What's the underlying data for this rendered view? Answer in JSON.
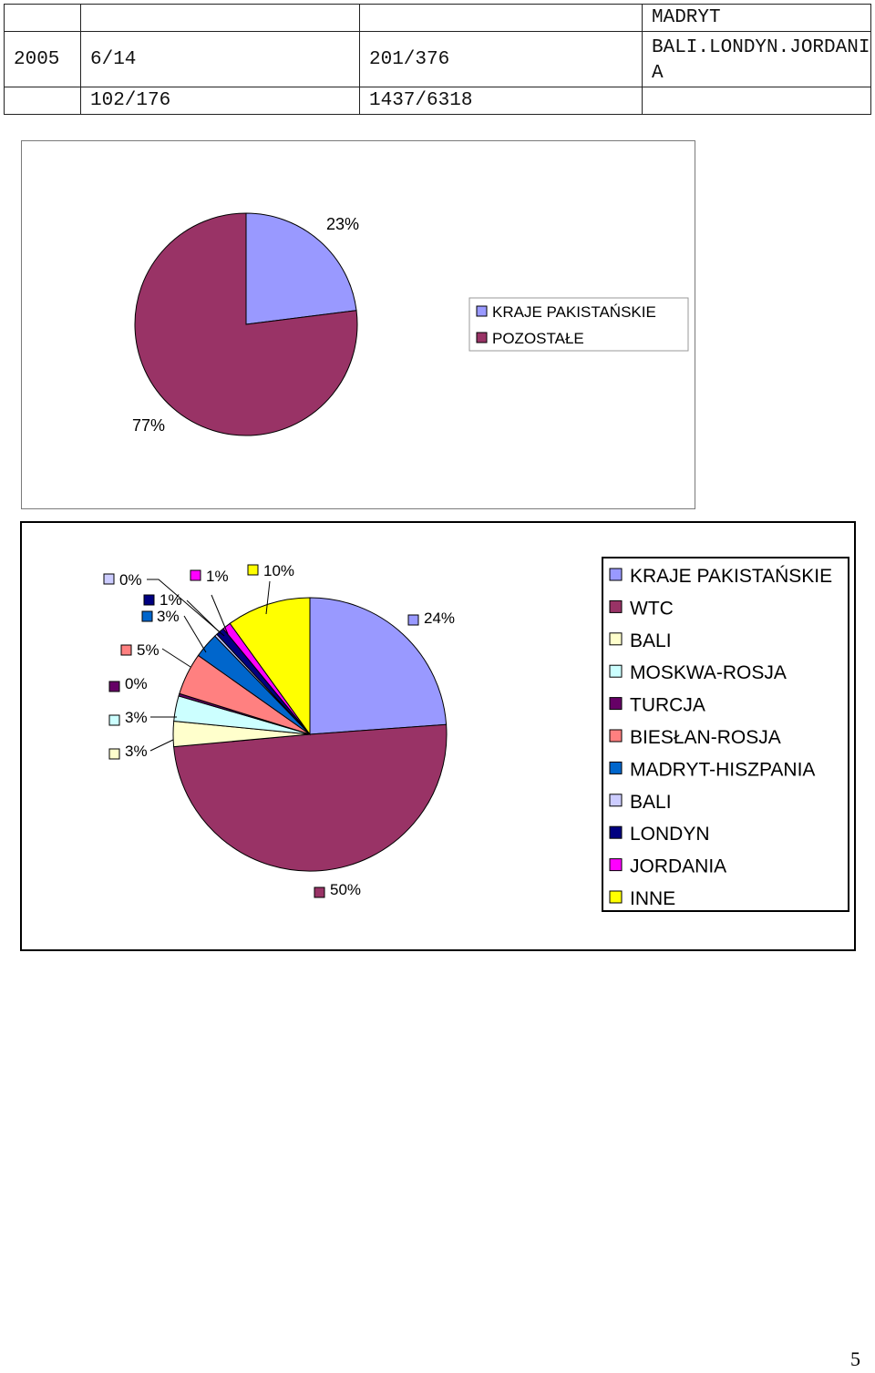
{
  "table": {
    "rows": [
      [
        "",
        "",
        "",
        "MADRYT"
      ],
      [
        "2005",
        "6/14",
        "201/376",
        "BALI.LONDYN.JORDANIA"
      ],
      [
        "",
        "102/176",
        "1437/6318",
        ""
      ]
    ]
  },
  "chart_data": [
    {
      "type": "pie",
      "categories": [
        "KRAJE PAKISTAŃSKIE",
        "POZOSTAŁE"
      ],
      "values": [
        23,
        77
      ],
      "data_labels": [
        "23%",
        "77%"
      ],
      "colors": [
        "#9999ff",
        "#993366"
      ],
      "legend": "right",
      "title": ""
    },
    {
      "type": "pie",
      "categories": [
        "KRAJE PAKISTAŃSKIE",
        "WTC",
        "BALI",
        "MOSKWA-ROSJA",
        "TURCJA",
        "BIESŁAN-ROSJA",
        "MADRYT-HISZPANIA",
        "BALI",
        "LONDYN",
        "JORDANIA",
        "INNE"
      ],
      "values": [
        24,
        50,
        3,
        3,
        0.3,
        5,
        3,
        0.3,
        1,
        1,
        10
      ],
      "data_labels": [
        "24%",
        "50%",
        "3%",
        "3%",
        "0%",
        "5%",
        "3%",
        "0%",
        "1%",
        "1%",
        "10%"
      ],
      "colors": [
        "#9999ff",
        "#993366",
        "#ffffcc",
        "#ccffff",
        "#660066",
        "#ff8080",
        "#0066cc",
        "#ccccff",
        "#000080",
        "#ff00ff",
        "#ffff00"
      ],
      "legend": "right",
      "title": ""
    }
  ],
  "page_number": "5"
}
